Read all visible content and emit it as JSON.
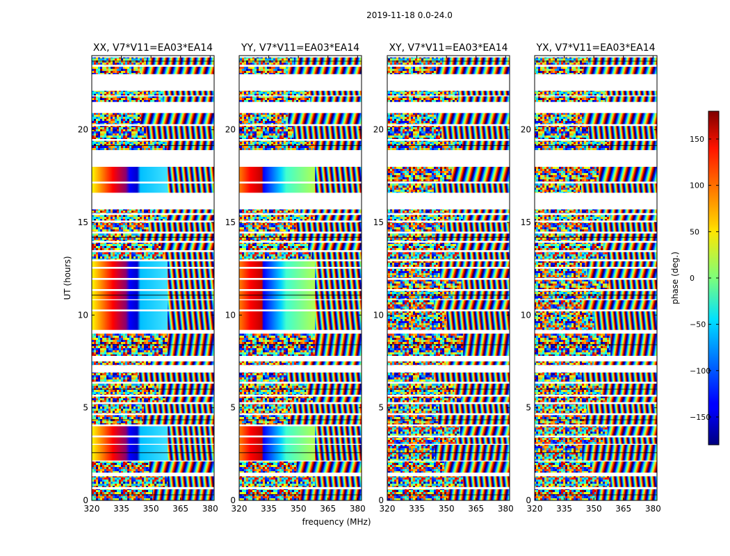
{
  "figure_title": "2019-11-18 0.0-24.0",
  "chart_data": {
    "type": "heatmap",
    "title": "2019-11-18 0.0-24.0",
    "xlabel": "frequency (MHz)",
    "ylabel": "UT (hours)",
    "xlim": [
      320,
      382
    ],
    "ylim": [
      0,
      24
    ],
    "x_ticks": [
      320,
      335,
      350,
      365,
      380
    ],
    "y_ticks": [
      0,
      5,
      10,
      15,
      20
    ],
    "colorbar": {
      "label": "phase (deg.)",
      "range": [
        -180,
        180
      ],
      "ticks": [
        150,
        100,
        50,
        0,
        -50,
        -100,
        -150
      ],
      "tick_labels": [
        "150",
        "100",
        "50",
        "0",
        "−50",
        "−100",
        "−150"
      ],
      "colormap": "jet"
    },
    "panels": [
      {
        "title": "XX, V7*V11=EA03*EA14",
        "polarization": "XX"
      },
      {
        "title": "YY, V7*V11=EA03*EA14",
        "polarization": "YY"
      },
      {
        "title": "XY, V7*V11=EA03*EA14",
        "polarization": "XY"
      },
      {
        "title": "YX, V7*V11=EA03*EA14",
        "polarization": "YX"
      }
    ],
    "data_rows_ut": [
      [
        0.0,
        0.6
      ],
      [
        0.72,
        1.3
      ],
      [
        1.5,
        2.1
      ],
      [
        2.15,
        3.0
      ],
      [
        3.05,
        3.4
      ],
      [
        3.5,
        4.0
      ],
      [
        4.1,
        4.6
      ],
      [
        4.7,
        5.2
      ],
      [
        5.3,
        5.6
      ],
      [
        5.7,
        6.3
      ],
      [
        6.4,
        6.9
      ],
      [
        7.3,
        7.5
      ],
      [
        7.8,
        9.0
      ],
      [
        9.2,
        10.2
      ],
      [
        10.3,
        10.8
      ],
      [
        10.85,
        11.3
      ],
      [
        11.4,
        11.9
      ],
      [
        12.0,
        12.5
      ],
      [
        12.6,
        12.9
      ],
      [
        13.0,
        13.4
      ],
      [
        13.5,
        13.9
      ],
      [
        14.0,
        14.4
      ],
      [
        14.5,
        15.0
      ],
      [
        15.1,
        15.4
      ],
      [
        15.5,
        15.7
      ],
      [
        16.6,
        17.1
      ],
      [
        17.2,
        18.0
      ],
      [
        18.9,
        19.4
      ],
      [
        19.5,
        20.2
      ],
      [
        20.3,
        20.9
      ],
      [
        21.5,
        21.8
      ],
      [
        21.85,
        22.1
      ],
      [
        23.0,
        23.4
      ],
      [
        23.5,
        23.9
      ]
    ]
  }
}
